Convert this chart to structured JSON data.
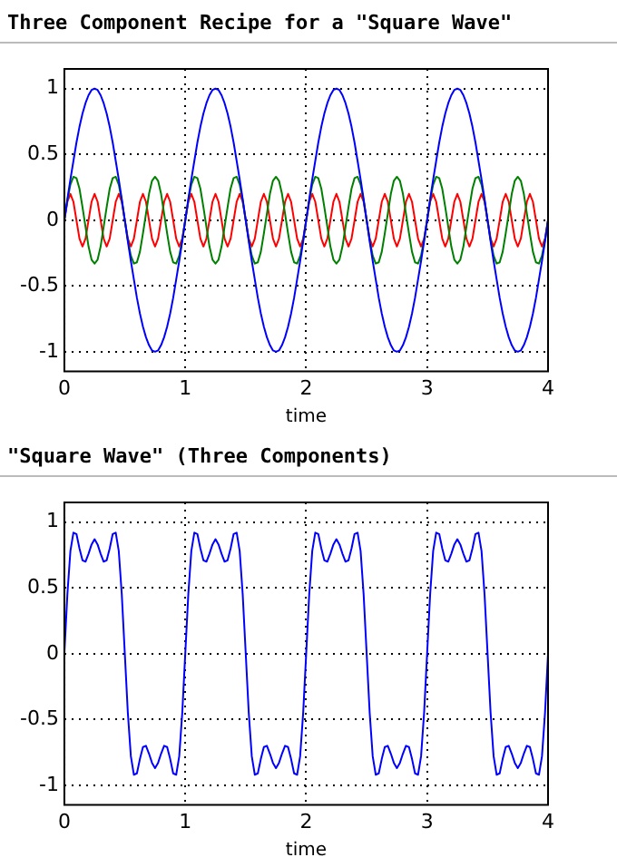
{
  "chart_data": [
    {
      "type": "line",
      "title": "Three Component Recipe for a \"Square Wave\"",
      "xlabel": "time",
      "xlim": [
        0,
        4
      ],
      "xticks": [
        0,
        1,
        2,
        3,
        4
      ],
      "ylim": [
        -1.15,
        1.15
      ],
      "yticks": [
        -1,
        -0.5,
        0,
        0.5,
        1
      ],
      "grid": true,
      "legend": false,
      "marker": "none",
      "line_style": "solid",
      "x": [
        0,
        0.025,
        0.05,
        0.075,
        0.1,
        0.125,
        0.15,
        0.175,
        0.2,
        0.225,
        0.25,
        0.275,
        0.3,
        0.325,
        0.35,
        0.375,
        0.4,
        0.425,
        0.45,
        0.475,
        0.5,
        0.525,
        0.55,
        0.575,
        0.6,
        0.625,
        0.65,
        0.675,
        0.7,
        0.725,
        0.75,
        0.775,
        0.8,
        0.825,
        0.85,
        0.875,
        0.9,
        0.925,
        0.95,
        0.975,
        1,
        1.025,
        1.05,
        1.075,
        1.1,
        1.125,
        1.15,
        1.175,
        1.2,
        1.225,
        1.25,
        1.275,
        1.3,
        1.325,
        1.35,
        1.375,
        1.4,
        1.425,
        1.45,
        1.475,
        1.5,
        1.525,
        1.55,
        1.575,
        1.6,
        1.625,
        1.65,
        1.675,
        1.7,
        1.725,
        1.75,
        1.775,
        1.8,
        1.825,
        1.85,
        1.875,
        1.9,
        1.925,
        1.95,
        1.975,
        2,
        2.025,
        2.05,
        2.075,
        2.1,
        2.125,
        2.15,
        2.175,
        2.2,
        2.225,
        2.25,
        2.275,
        2.3,
        2.325,
        2.35,
        2.375,
        2.4,
        2.425,
        2.45,
        2.475,
        2.5,
        2.525,
        2.55,
        2.575,
        2.6,
        2.625,
        2.65,
        2.675,
        2.7,
        2.725,
        2.75,
        2.775,
        2.8,
        2.825,
        2.85,
        2.875,
        2.9,
        2.925,
        2.95,
        2.975,
        3,
        3.025,
        3.05,
        3.075,
        3.1,
        3.125,
        3.15,
        3.175,
        3.2,
        3.225,
        3.25,
        3.275,
        3.3,
        3.325,
        3.35,
        3.375,
        3.4,
        3.425,
        3.45,
        3.475,
        3.5,
        3.525,
        3.55,
        3.575,
        3.6,
        3.625,
        3.65,
        3.675,
        3.7,
        3.725,
        3.75,
        3.775,
        3.8,
        3.825,
        3.85,
        3.875,
        3.9,
        3.925,
        3.95,
        3.975,
        4
      ],
      "series": [
        {
          "color": "#0000ff",
          "values": [
            0,
            0.16,
            0.31,
            0.45,
            0.59,
            0.71,
            0.81,
            0.89,
            0.95,
            0.99,
            1,
            0.99,
            0.95,
            0.89,
            0.81,
            0.71,
            0.59,
            0.45,
            0.31,
            0.16,
            0,
            -0.16,
            -0.31,
            -0.45,
            -0.59,
            -0.71,
            -0.81,
            -0.89,
            -0.95,
            -0.99,
            -1,
            -0.99,
            -0.95,
            -0.89,
            -0.81,
            -0.71,
            -0.59,
            -0.45,
            -0.31,
            -0.16,
            0,
            0.16,
            0.31,
            0.45,
            0.59,
            0.71,
            0.81,
            0.89,
            0.95,
            0.99,
            1,
            0.99,
            0.95,
            0.89,
            0.81,
            0.71,
            0.59,
            0.45,
            0.31,
            0.16,
            0,
            -0.16,
            -0.31,
            -0.45,
            -0.59,
            -0.71,
            -0.81,
            -0.89,
            -0.95,
            -0.99,
            -1,
            -0.99,
            -0.95,
            -0.89,
            -0.81,
            -0.71,
            -0.59,
            -0.45,
            -0.31,
            -0.16,
            0,
            0.16,
            0.31,
            0.45,
            0.59,
            0.71,
            0.81,
            0.89,
            0.95,
            0.99,
            1,
            0.99,
            0.95,
            0.89,
            0.81,
            0.71,
            0.59,
            0.45,
            0.31,
            0.16,
            0,
            -0.16,
            -0.31,
            -0.45,
            -0.59,
            -0.71,
            -0.81,
            -0.89,
            -0.95,
            -0.99,
            -1,
            -0.99,
            -0.95,
            -0.89,
            -0.81,
            -0.71,
            -0.59,
            -0.45,
            -0.31,
            -0.16,
            0,
            0.16,
            0.31,
            0.45,
            0.59,
            0.71,
            0.81,
            0.89,
            0.95,
            0.99,
            1,
            0.99,
            0.95,
            0.89,
            0.81,
            0.71,
            0.59,
            0.45,
            0.31,
            0.16,
            0,
            -0.16,
            -0.31,
            -0.45,
            -0.59,
            -0.71,
            -0.81,
            -0.89,
            -0.95,
            -0.99,
            -1,
            -0.99,
            -0.95,
            -0.89,
            -0.81,
            -0.71,
            -0.59,
            -0.45,
            -0.31,
            -0.16,
            0
          ]
        },
        {
          "color": "#008000",
          "values": [
            0,
            0.15,
            0.27,
            0.33,
            0.32,
            0.24,
            0.1,
            -0.05,
            -0.2,
            -0.3,
            -0.33,
            -0.3,
            -0.2,
            -0.05,
            0.1,
            0.24,
            0.32,
            0.33,
            0.27,
            0.15,
            0,
            -0.15,
            -0.27,
            -0.33,
            -0.32,
            -0.24,
            -0.1,
            0.05,
            0.2,
            0.3,
            0.33,
            0.3,
            0.2,
            0.05,
            -0.1,
            -0.24,
            -0.32,
            -0.33,
            -0.27,
            -0.15,
            0,
            0.15,
            0.27,
            0.33,
            0.32,
            0.24,
            0.1,
            -0.05,
            -0.2,
            -0.3,
            -0.33,
            -0.3,
            -0.2,
            -0.05,
            0.1,
            0.24,
            0.32,
            0.33,
            0.27,
            0.15,
            0,
            -0.15,
            -0.27,
            -0.33,
            -0.32,
            -0.24,
            -0.1,
            0.05,
            0.2,
            0.3,
            0.33,
            0.3,
            0.2,
            0.05,
            -0.1,
            -0.24,
            -0.32,
            -0.33,
            -0.27,
            -0.15,
            0,
            0.15,
            0.27,
            0.33,
            0.32,
            0.24,
            0.1,
            -0.05,
            -0.2,
            -0.3,
            -0.33,
            -0.3,
            -0.2,
            -0.05,
            0.1,
            0.24,
            0.32,
            0.33,
            0.27,
            0.15,
            0,
            -0.15,
            -0.27,
            -0.33,
            -0.32,
            -0.24,
            -0.1,
            0.05,
            0.2,
            0.3,
            0.33,
            0.3,
            0.2,
            0.05,
            -0.1,
            -0.24,
            -0.32,
            -0.33,
            -0.27,
            -0.15,
            0,
            0.15,
            0.27,
            0.33,
            0.32,
            0.24,
            0.1,
            -0.05,
            -0.2,
            -0.3,
            -0.33,
            -0.3,
            -0.2,
            -0.05,
            0.1,
            0.24,
            0.32,
            0.33,
            0.27,
            0.15,
            0,
            -0.15,
            -0.27,
            -0.33,
            -0.32,
            -0.24,
            -0.1,
            0.05,
            0.2,
            0.3,
            0.33,
            0.3,
            0.2,
            0.05,
            -0.1,
            -0.24,
            -0.32,
            -0.33,
            -0.27,
            -0.15,
            0
          ]
        },
        {
          "color": "#ff0000",
          "values": [
            0,
            0.14,
            0.2,
            0.14,
            0,
            -0.14,
            -0.2,
            -0.14,
            0,
            0.14,
            0.2,
            0.14,
            0,
            -0.14,
            -0.2,
            -0.14,
            0,
            0.14,
            0.2,
            0.14,
            0,
            -0.14,
            -0.2,
            -0.14,
            0,
            0.14,
            0.2,
            0.14,
            0,
            -0.14,
            -0.2,
            -0.14,
            0,
            0.14,
            0.2,
            0.14,
            0,
            -0.14,
            -0.2,
            -0.14,
            0,
            0.14,
            0.2,
            0.14,
            0,
            -0.14,
            -0.2,
            -0.14,
            0,
            0.14,
            0.2,
            0.14,
            0,
            -0.14,
            -0.2,
            -0.14,
            0,
            0.14,
            0.2,
            0.14,
            0,
            -0.14,
            -0.2,
            -0.14,
            0,
            0.14,
            0.2,
            0.14,
            0,
            -0.14,
            -0.2,
            -0.14,
            0,
            0.14,
            0.2,
            0.14,
            0,
            -0.14,
            -0.2,
            -0.14,
            0,
            0.14,
            0.2,
            0.14,
            0,
            -0.14,
            -0.2,
            -0.14,
            0,
            0.14,
            0.2,
            0.14,
            0,
            -0.14,
            -0.2,
            -0.14,
            0,
            0.14,
            0.2,
            0.14,
            0,
            -0.14,
            -0.2,
            -0.14,
            0,
            0.14,
            0.2,
            0.14,
            0,
            -0.14,
            -0.2,
            -0.14,
            0,
            0.14,
            0.2,
            0.14,
            0,
            -0.14,
            -0.2,
            -0.14,
            0,
            0.14,
            0.2,
            0.14,
            0,
            -0.14,
            -0.2,
            -0.14,
            0,
            0.14,
            0.2,
            0.14,
            0,
            -0.14,
            -0.2,
            -0.14,
            0,
            0.14,
            0.2,
            0.14,
            0,
            -0.14,
            -0.2,
            -0.14,
            0,
            0.14,
            0.2,
            0.14,
            0,
            -0.14,
            -0.2,
            -0.14,
            0,
            0.14,
            0.2,
            0.14,
            0,
            -0.14,
            -0.2,
            -0.14,
            0
          ]
        }
      ]
    },
    {
      "type": "line",
      "title": "\"Square Wave\" (Three Components)",
      "xlabel": "time",
      "xlim": [
        0,
        4
      ],
      "xticks": [
        0,
        1,
        2,
        3,
        4
      ],
      "ylim": [
        -1.15,
        1.15
      ],
      "yticks": [
        -1,
        -0.5,
        0,
        0.5,
        1
      ],
      "grid": true,
      "legend": false,
      "marker": "none",
      "line_style": "solid",
      "x": [
        0,
        0.025,
        0.05,
        0.075,
        0.1,
        0.125,
        0.15,
        0.175,
        0.2,
        0.225,
        0.25,
        0.275,
        0.3,
        0.325,
        0.35,
        0.375,
        0.4,
        0.425,
        0.45,
        0.475,
        0.5,
        0.525,
        0.55,
        0.575,
        0.6,
        0.625,
        0.65,
        0.675,
        0.7,
        0.725,
        0.75,
        0.775,
        0.8,
        0.825,
        0.85,
        0.875,
        0.9,
        0.925,
        0.95,
        0.975,
        1,
        1.025,
        1.05,
        1.075,
        1.1,
        1.125,
        1.15,
        1.175,
        1.2,
        1.225,
        1.25,
        1.275,
        1.3,
        1.325,
        1.35,
        1.375,
        1.4,
        1.425,
        1.45,
        1.475,
        1.5,
        1.525,
        1.55,
        1.575,
        1.6,
        1.625,
        1.65,
        1.675,
        1.7,
        1.725,
        1.75,
        1.775,
        1.8,
        1.825,
        1.85,
        1.875,
        1.9,
        1.925,
        1.95,
        1.975,
        2,
        2.025,
        2.05,
        2.075,
        2.1,
        2.125,
        2.15,
        2.175,
        2.2,
        2.225,
        2.25,
        2.275,
        2.3,
        2.325,
        2.35,
        2.375,
        2.4,
        2.425,
        2.45,
        2.475,
        2.5,
        2.525,
        2.55,
        2.575,
        2.6,
        2.625,
        2.65,
        2.675,
        2.7,
        2.725,
        2.75,
        2.775,
        2.8,
        2.825,
        2.85,
        2.875,
        2.9,
        2.925,
        2.95,
        2.975,
        3,
        3.025,
        3.05,
        3.075,
        3.1,
        3.125,
        3.15,
        3.175,
        3.2,
        3.225,
        3.25,
        3.275,
        3.3,
        3.325,
        3.35,
        3.375,
        3.4,
        3.425,
        3.45,
        3.475,
        3.5,
        3.525,
        3.55,
        3.575,
        3.6,
        3.625,
        3.65,
        3.675,
        3.7,
        3.725,
        3.75,
        3.775,
        3.8,
        3.825,
        3.85,
        3.875,
        3.9,
        3.925,
        3.95,
        3.975,
        4
      ],
      "series": [
        {
          "color": "#0000ff",
          "values": [
            0,
            0.45,
            0.78,
            0.92,
            0.91,
            0.8,
            0.71,
            0.7,
            0.76,
            0.83,
            0.87,
            0.83,
            0.76,
            0.7,
            0.71,
            0.8,
            0.91,
            0.92,
            0.78,
            0.45,
            0,
            -0.45,
            -0.78,
            -0.92,
            -0.91,
            -0.8,
            -0.71,
            -0.7,
            -0.76,
            -0.83,
            -0.87,
            -0.83,
            -0.76,
            -0.7,
            -0.71,
            -0.8,
            -0.91,
            -0.92,
            -0.78,
            -0.45,
            0,
            0.45,
            0.78,
            0.92,
            0.91,
            0.8,
            0.71,
            0.7,
            0.76,
            0.83,
            0.87,
            0.83,
            0.76,
            0.7,
            0.71,
            0.8,
            0.91,
            0.92,
            0.78,
            0.45,
            0,
            -0.45,
            -0.78,
            -0.92,
            -0.91,
            -0.8,
            -0.71,
            -0.7,
            -0.76,
            -0.83,
            -0.87,
            -0.83,
            -0.76,
            -0.7,
            -0.71,
            -0.8,
            -0.91,
            -0.92,
            -0.78,
            -0.45,
            0,
            0.45,
            0.78,
            0.92,
            0.91,
            0.8,
            0.71,
            0.7,
            0.76,
            0.83,
            0.87,
            0.83,
            0.76,
            0.7,
            0.71,
            0.8,
            0.91,
            0.92,
            0.78,
            0.45,
            0,
            -0.45,
            -0.78,
            -0.92,
            -0.91,
            -0.8,
            -0.71,
            -0.7,
            -0.76,
            -0.83,
            -0.87,
            -0.83,
            -0.76,
            -0.7,
            -0.71,
            -0.8,
            -0.91,
            -0.92,
            -0.78,
            -0.45,
            0,
            0.45,
            0.78,
            0.92,
            0.91,
            0.8,
            0.71,
            0.7,
            0.76,
            0.83,
            0.87,
            0.83,
            0.76,
            0.7,
            0.71,
            0.8,
            0.91,
            0.92,
            0.78,
            0.45,
            0,
            -0.45,
            -0.78,
            -0.92,
            -0.91,
            -0.8,
            -0.71,
            -0.7,
            -0.76,
            -0.83,
            -0.87,
            -0.83,
            -0.76,
            -0.7,
            -0.71,
            -0.8,
            -0.91,
            -0.92,
            -0.78,
            -0.45,
            0
          ]
        }
      ]
    }
  ]
}
